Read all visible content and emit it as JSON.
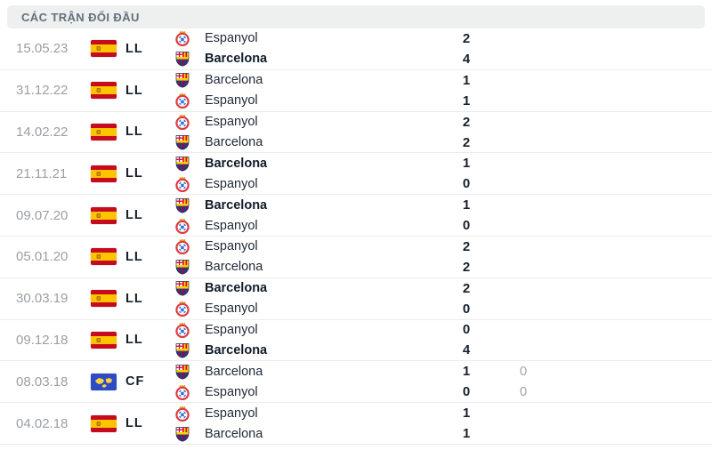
{
  "header": {
    "title": "CÁC TRẬN ĐỐI ĐẦU"
  },
  "colors": {
    "header_bg": "#eeefef",
    "header_text": "#64707b",
    "row_divider": "#ececec",
    "date_gray": "#9b9fa4",
    "text_navy": "#16202c",
    "secondary_score_gray": "#a2a7ad",
    "spain_flag_red": "#c60b1e",
    "spain_flag_yellow": "#ffc400",
    "friendly_flag_blue": "#2e4bc6",
    "friendly_flag_yellow": "#ffd23e",
    "espanyol_red": "#e03a3e",
    "espanyol_blue": "#2a6cd4",
    "barcelona_blue": "#004d98",
    "barcelona_red": "#a50044",
    "barcelona_gold": "#ffd200"
  },
  "matches": [
    {
      "date": "15.05.23",
      "competition": "LL",
      "flag": "spain-flag",
      "home": {
        "team": "Espanyol",
        "logo": "espanyol-logo",
        "score": "2",
        "score2": "",
        "bold": false
      },
      "away": {
        "team": "Barcelona",
        "logo": "barcelona-logo",
        "score": "4",
        "score2": "",
        "bold": true
      }
    },
    {
      "date": "31.12.22",
      "competition": "LL",
      "flag": "spain-flag",
      "home": {
        "team": "Barcelona",
        "logo": "barcelona-logo",
        "score": "1",
        "score2": "",
        "bold": false
      },
      "away": {
        "team": "Espanyol",
        "logo": "espanyol-logo",
        "score": "1",
        "score2": "",
        "bold": false
      }
    },
    {
      "date": "14.02.22",
      "competition": "LL",
      "flag": "spain-flag",
      "home": {
        "team": "Espanyol",
        "logo": "espanyol-logo",
        "score": "2",
        "score2": "",
        "bold": false
      },
      "away": {
        "team": "Barcelona",
        "logo": "barcelona-logo",
        "score": "2",
        "score2": "",
        "bold": false
      }
    },
    {
      "date": "21.11.21",
      "competition": "LL",
      "flag": "spain-flag",
      "home": {
        "team": "Barcelona",
        "logo": "barcelona-logo",
        "score": "1",
        "score2": "",
        "bold": true
      },
      "away": {
        "team": "Espanyol",
        "logo": "espanyol-logo",
        "score": "0",
        "score2": "",
        "bold": false
      }
    },
    {
      "date": "09.07.20",
      "competition": "LL",
      "flag": "spain-flag",
      "home": {
        "team": "Barcelona",
        "logo": "barcelona-logo",
        "score": "1",
        "score2": "",
        "bold": true
      },
      "away": {
        "team": "Espanyol",
        "logo": "espanyol-logo",
        "score": "0",
        "score2": "",
        "bold": false
      }
    },
    {
      "date": "05.01.20",
      "competition": "LL",
      "flag": "spain-flag",
      "home": {
        "team": "Espanyol",
        "logo": "espanyol-logo",
        "score": "2",
        "score2": "",
        "bold": false
      },
      "away": {
        "team": "Barcelona",
        "logo": "barcelona-logo",
        "score": "2",
        "score2": "",
        "bold": false
      }
    },
    {
      "date": "30.03.19",
      "competition": "LL",
      "flag": "spain-flag",
      "home": {
        "team": "Barcelona",
        "logo": "barcelona-logo",
        "score": "2",
        "score2": "",
        "bold": true
      },
      "away": {
        "team": "Espanyol",
        "logo": "espanyol-logo",
        "score": "0",
        "score2": "",
        "bold": false
      }
    },
    {
      "date": "09.12.18",
      "competition": "LL",
      "flag": "spain-flag",
      "home": {
        "team": "Espanyol",
        "logo": "espanyol-logo",
        "score": "0",
        "score2": "",
        "bold": false
      },
      "away": {
        "team": "Barcelona",
        "logo": "barcelona-logo",
        "score": "4",
        "score2": "",
        "bold": true
      }
    },
    {
      "date": "08.03.18",
      "competition": "CF",
      "flag": "club-friendly-flag",
      "home": {
        "team": "Barcelona",
        "logo": "barcelona-logo",
        "score": "1",
        "score2": "0",
        "bold": false
      },
      "away": {
        "team": "Espanyol",
        "logo": "espanyol-logo",
        "score": "0",
        "score2": "0",
        "bold": false
      }
    },
    {
      "date": "04.02.18",
      "competition": "LL",
      "flag": "spain-flag",
      "home": {
        "team": "Espanyol",
        "logo": "espanyol-logo",
        "score": "1",
        "score2": "",
        "bold": false
      },
      "away": {
        "team": "Barcelona",
        "logo": "barcelona-logo",
        "score": "1",
        "score2": "",
        "bold": false
      }
    }
  ]
}
